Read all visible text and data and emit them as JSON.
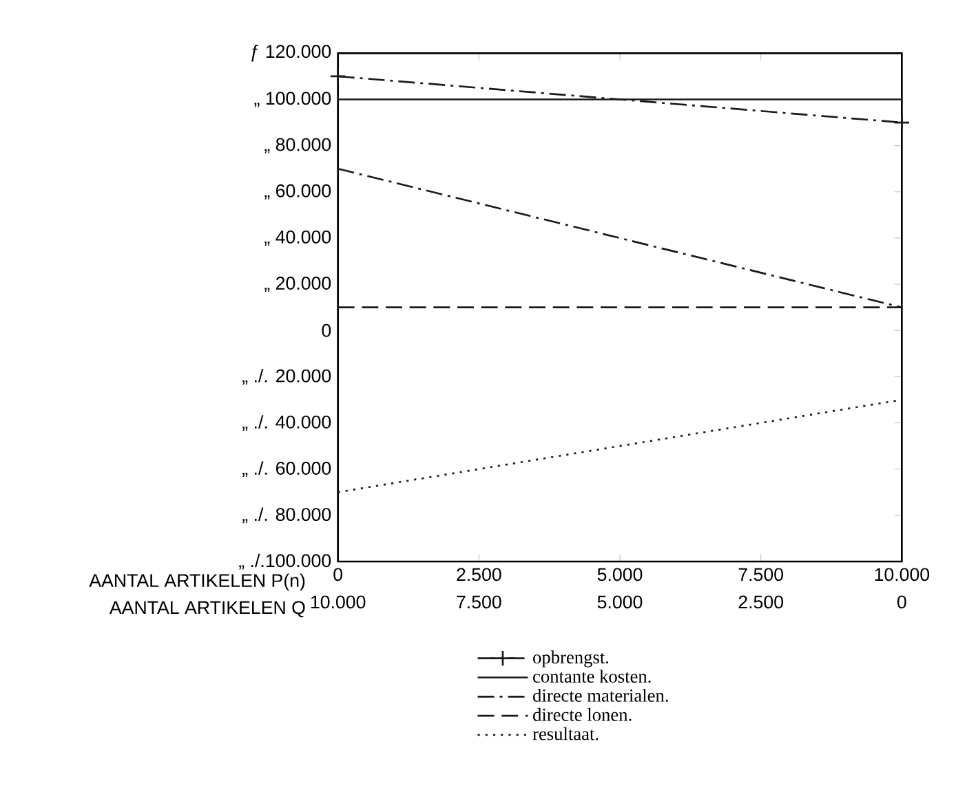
{
  "chart_data": {
    "type": "line",
    "xlabel": "AANTAL ARTIKELEN P(n)",
    "x2label": "AANTAL ARTIKELEN Q",
    "x": [
      0,
      10000
    ],
    "xlim": [
      0,
      10000
    ],
    "xticks": [
      0,
      {
        "value": 2500,
        "label": "2.500"
      },
      {
        "value": 5000,
        "label": "5.000"
      },
      {
        "value": 7500,
        "label": "7.500"
      },
      {
        "value": 10000,
        "label": "10.000"
      }
    ],
    "x2lim": [
      10000,
      0
    ],
    "x2ticks": [
      {
        "value": 10000,
        "label": "10.000"
      },
      {
        "value": 7500,
        "label": "7.500"
      },
      {
        "value": 5000,
        "label": "5.000"
      },
      {
        "value": 2500,
        "label": "2.500"
      },
      0
    ],
    "ylim": [
      -100000,
      120000
    ],
    "yticks": [
      {
        "value": 120000,
        "label": "ƒ 120.000"
      },
      {
        "value": 100000,
        "label": "„ 100.000"
      },
      {
        "value": 80000,
        "label": "„ 80.000"
      },
      {
        "value": 60000,
        "label": "„ 60.000"
      },
      {
        "value": 40000,
        "label": "„ 40.000"
      },
      {
        "value": 20000,
        "label": "„ 20.000"
      },
      0,
      {
        "value": -20000,
        "label": "„ ./. 20.000"
      },
      {
        "value": -40000,
        "label": "„ ./. 40.000"
      },
      {
        "value": -60000,
        "label": "„ ./. 60.000"
      },
      {
        "value": -80000,
        "label": "„ ./. 80.000"
      },
      {
        "value": -100000,
        "label": "„ ./.100.000"
      }
    ],
    "legend": "bottom",
    "series": [
      {
        "name": "opbrengst.",
        "color": "#1a1a1a",
        "values": [
          110000,
          90000
        ],
        "marker": "cross",
        "line_style": "dashdot"
      },
      {
        "name": "contante kosten.",
        "color": "#1a1a1a",
        "values": [
          100000,
          100000
        ],
        "line_style": "solid"
      },
      {
        "name": "directe materialen.",
        "color": "#1a1a1a",
        "values": [
          70000,
          10000
        ],
        "line_style": "dashdot"
      },
      {
        "name": "directe lonen.",
        "color": "#1a1a1a",
        "values": [
          10000,
          10000
        ],
        "line_style": "dashed"
      },
      {
        "name": "resultaat.",
        "color": "#1a1a1a",
        "values": [
          -70000,
          -30000
        ],
        "line_style": "dotted"
      }
    ]
  }
}
